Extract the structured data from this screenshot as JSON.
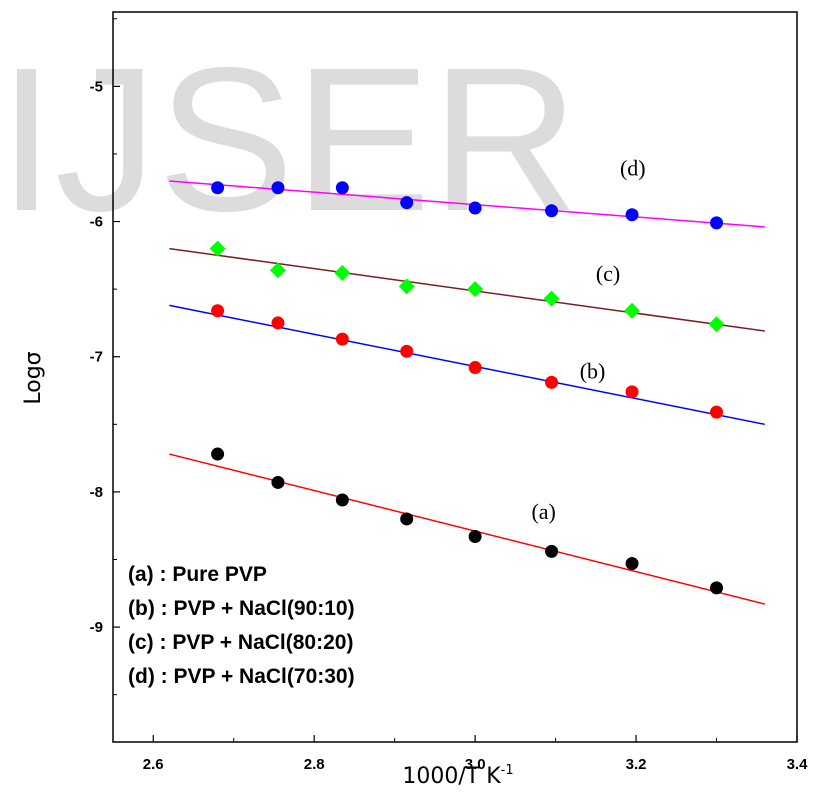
{
  "watermark": "IJSER",
  "chart_data": {
    "type": "scatter",
    "xlabel": "1000/T K",
    "xlabel_sup": "-1",
    "ylabel": "Logσ",
    "xlim": [
      2.55,
      3.4
    ],
    "ylim": [
      -9.85,
      -4.45
    ],
    "xticks": [
      "2.6",
      "2.8",
      "3.0",
      "3.2",
      "3.4"
    ],
    "yticks": [
      "-5",
      "-6",
      "-7",
      "-8",
      "-9"
    ],
    "grid": false,
    "legend_lines": [
      "(a) : Pure PVP",
      "(b) : PVP + NaCl(90:10)",
      "(c) : PVP + NaCl(80:20)",
      "(d) : PVP + NaCl(70:30)"
    ],
    "series": [
      {
        "label": "(a)",
        "marker": "circle",
        "marker_color": "#000000",
        "line_color": "#ff0000",
        "x": [
          2.68,
          2.755,
          2.835,
          2.915,
          3.0,
          3.095,
          3.195,
          3.3
        ],
        "y": [
          -7.72,
          -7.93,
          -8.06,
          -8.2,
          -8.33,
          -8.44,
          -8.53,
          -8.71
        ],
        "fit": {
          "x": [
            2.62,
            3.36
          ],
          "y": [
            -7.72,
            -8.83
          ]
        }
      },
      {
        "label": "(b)",
        "marker": "circle",
        "marker_color": "#ff0000",
        "line_color": "#0000ff",
        "x": [
          2.68,
          2.755,
          2.835,
          2.915,
          3.0,
          3.095,
          3.195,
          3.3
        ],
        "y": [
          -6.66,
          -6.75,
          -6.87,
          -6.96,
          -7.08,
          -7.19,
          -7.26,
          -7.41
        ],
        "fit": {
          "x": [
            2.62,
            3.36
          ],
          "y": [
            -6.62,
            -7.5
          ]
        }
      },
      {
        "label": "(c)",
        "marker": "diamond",
        "marker_color": "#00ff00",
        "line_color": "#7a1f1f",
        "x": [
          2.68,
          2.755,
          2.835,
          2.915,
          3.0,
          3.095,
          3.195,
          3.3
        ],
        "y": [
          -6.2,
          -6.36,
          -6.38,
          -6.48,
          -6.5,
          -6.57,
          -6.66,
          -6.76
        ],
        "fit": {
          "x": [
            2.62,
            3.36
          ],
          "y": [
            -6.2,
            -6.81
          ]
        }
      },
      {
        "label": "(d)",
        "marker": "circle",
        "marker_color": "#0000ff",
        "line_color": "#ff00ff",
        "x": [
          2.68,
          2.755,
          2.835,
          2.915,
          3.0,
          3.095,
          3.195,
          3.3
        ],
        "y": [
          -5.75,
          -5.75,
          -5.75,
          -5.86,
          -5.9,
          -5.92,
          -5.95,
          -6.01
        ],
        "fit": {
          "x": [
            2.62,
            3.36
          ],
          "y": [
            -5.7,
            -6.04
          ]
        }
      }
    ],
    "annotations": [
      {
        "text": "(a)",
        "x": 3.07,
        "y": -8.2
      },
      {
        "text": "(b)",
        "x": 3.13,
        "y": -7.16
      },
      {
        "text": "(c)",
        "x": 3.15,
        "y": -6.44
      },
      {
        "text": "(d)",
        "x": 3.18,
        "y": -5.66
      }
    ]
  }
}
